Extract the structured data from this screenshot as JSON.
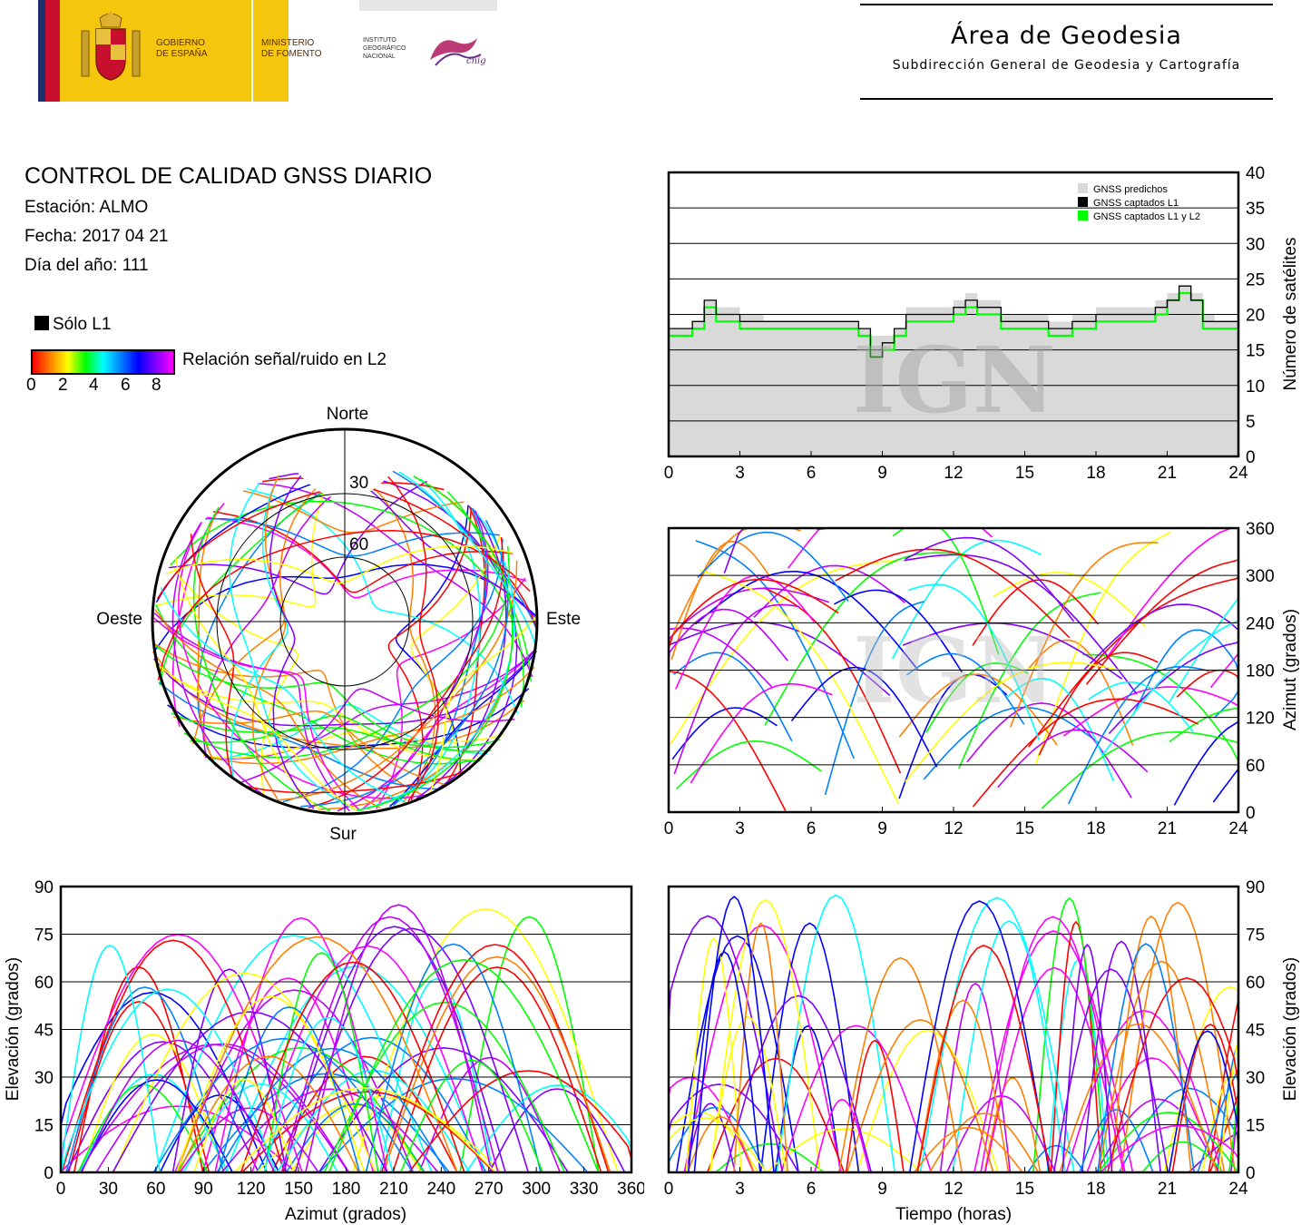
{
  "header": {
    "gov_line1": "GOBIERNO",
    "gov_line2": "DE ESPAÑA",
    "min_line1": "MINISTERIO",
    "min_line2": "DE FOMENTO",
    "ign_line1": "INSTITUTO",
    "ign_line2": "GEOGRÁFICO",
    "ign_line3": "NACIONAL",
    "cnig": "cnig",
    "area_title": "Área de Geodesia",
    "area_subtitle": "Subdirección General de Geodesia y Cartografía"
  },
  "report": {
    "title": "CONTROL DE CALIDAD GNSS DIARIO",
    "station": "Estación: ALMO",
    "date": "Fecha: 2017 04 21",
    "doy": "Día del año: 111"
  },
  "legend": {
    "l1_only": "Sólo L1",
    "snr_label": "Relación señal/ruido en L2",
    "scale_ticks": [
      "0",
      "2",
      "4",
      "6",
      "8"
    ]
  },
  "watermark": "IGN",
  "colors": {
    "predicted": "#d9d9d9",
    "l1": "#000000",
    "l1l2": "#00ff00",
    "snr_gradient": [
      "#ff0000",
      "#ffff00",
      "#00ff00",
      "#00ffff",
      "#0000ff",
      "#ff00ff"
    ]
  },
  "chart_data": [
    {
      "id": "satellites",
      "type": "line",
      "xlim": [
        0,
        24
      ],
      "xticks": [
        "0",
        "3",
        "6",
        "9",
        "12",
        "15",
        "18",
        "21",
        "24"
      ],
      "ylim": [
        0,
        40
      ],
      "yticks": [
        "0",
        "5",
        "10",
        "15",
        "20",
        "25",
        "30",
        "35",
        "40"
      ],
      "ylabel": "Número de satélites",
      "grid": true,
      "legend_position": "top-right",
      "x": [
        0,
        1,
        1.5,
        2,
        3,
        4,
        5,
        6,
        7,
        8,
        8.5,
        9,
        9.5,
        10,
        11,
        12,
        12.5,
        13,
        14,
        15,
        16,
        17,
        18,
        19,
        20,
        20.5,
        21,
        21.5,
        22,
        22.5,
        23,
        24
      ],
      "series": [
        {
          "name": "GNSS predichos",
          "values": [
            18,
            19,
            22,
            21,
            20,
            19,
            19,
            19,
            19,
            18,
            17,
            17,
            18,
            21,
            21,
            22,
            23,
            22,
            20,
            20,
            19,
            20,
            21,
            21,
            21,
            22,
            23,
            24,
            23,
            20,
            19,
            19
          ]
        },
        {
          "name": "GNSS captados L1",
          "values": [
            18,
            19,
            22,
            20,
            19,
            19,
            19,
            19,
            19,
            18,
            14,
            16,
            18,
            20,
            20,
            21,
            22,
            21,
            19,
            19,
            18,
            19,
            20,
            20,
            20,
            21,
            22,
            24,
            22,
            19,
            19,
            19
          ]
        },
        {
          "name": "GNSS captados L1 y L2",
          "values": [
            17,
            18,
            21,
            19,
            18,
            18,
            18,
            18,
            18,
            17,
            14,
            15,
            17,
            19,
            19,
            20,
            21,
            20,
            18,
            18,
            17,
            18,
            19,
            19,
            19,
            20,
            22,
            23,
            22,
            18,
            18,
            18
          ]
        }
      ]
    },
    {
      "id": "skyplot",
      "type": "scatter",
      "title": "",
      "direction_labels": {
        "north": "Norte",
        "south": "Sur",
        "east": "Este",
        "west": "Oeste"
      },
      "ring_labels": [
        "30",
        "60"
      ],
      "description_series": "satellite tracks (azimuth, elevation) colored by L2 SNR"
    },
    {
      "id": "azimuth-time",
      "type": "scatter",
      "xlim": [
        0,
        24
      ],
      "xticks": [
        "0",
        "3",
        "6",
        "9",
        "12",
        "15",
        "18",
        "21",
        "24"
      ],
      "ylim": [
        0,
        360
      ],
      "yticks": [
        "0",
        "60",
        "120",
        "180",
        "240",
        "300",
        "360"
      ],
      "ylabel": "Azimut (grados)",
      "grid": true
    },
    {
      "id": "elevation-azimuth",
      "type": "scatter",
      "xlim": [
        0,
        360
      ],
      "xticks": [
        "0",
        "30",
        "60",
        "90",
        "120",
        "150",
        "180",
        "210",
        "240",
        "270",
        "300",
        "330",
        "360"
      ],
      "ylim": [
        0,
        90
      ],
      "yticks": [
        "0",
        "15",
        "30",
        "45",
        "60",
        "75",
        "90"
      ],
      "xlabel": "Azimut (grados)",
      "ylabel": "Elevación (grados)",
      "grid": true
    },
    {
      "id": "elevation-time",
      "type": "scatter",
      "xlim": [
        0,
        24
      ],
      "xticks": [
        "0",
        "3",
        "6",
        "9",
        "12",
        "15",
        "18",
        "21",
        "24"
      ],
      "ylim": [
        0,
        90
      ],
      "yticks": [
        "0",
        "15",
        "30",
        "45",
        "60",
        "75",
        "90"
      ],
      "xlabel": "Tiempo (horas)",
      "ylabel": "Elevación (grados)",
      "grid": true
    }
  ]
}
